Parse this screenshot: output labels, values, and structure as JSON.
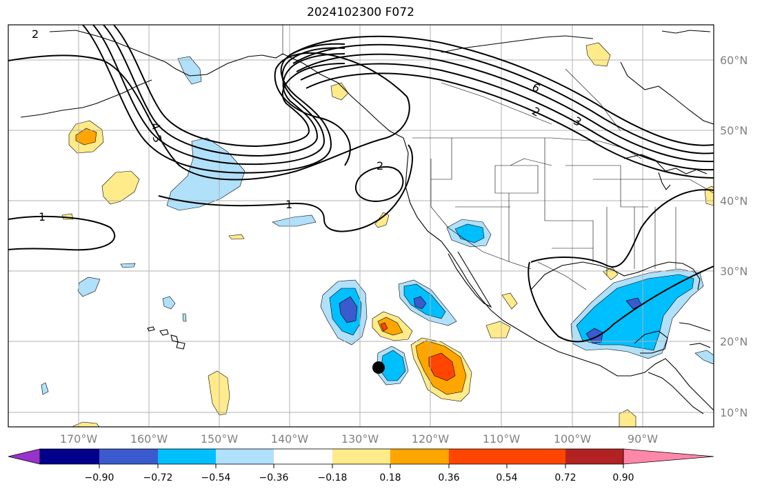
{
  "title": "2024102300 F072",
  "latitude_labels": [
    "60°N",
    "50°N",
    "40°N",
    "30°N",
    "20°N",
    "10°N"
  ],
  "longitude_labels": [
    "170°W",
    "160°W",
    "150°W",
    "140°W",
    "130°W",
    "120°W",
    "110°W",
    "100°W",
    "90°W"
  ],
  "contour_labels": [
    "2",
    "2",
    "1",
    "1",
    "4",
    "3",
    "6",
    "2",
    "3"
  ],
  "colorbar": {
    "tick_labels": [
      "−0.90",
      "−0.72",
      "−0.54",
      "−0.36",
      "−0.18",
      "0.18",
      "0.36",
      "0.54",
      "0.72",
      "0.90"
    ],
    "colors": [
      "#9932cc",
      "#00008b",
      "#3a5acd",
      "#00bfff",
      "#b0e0fa",
      "#ffffff",
      "#ffeb8a",
      "#ffa500",
      "#ff4500",
      "#b22222",
      "#ff88aa"
    ]
  },
  "colors": {
    "light_blue": "#b0e0fa",
    "blue": "#00bfff",
    "dark_blue": "#3a5acd",
    "light_yellow": "#ffeb8a",
    "orange": "#ffa500",
    "red_orange": "#ff4500",
    "grid": "#b0b0b0",
    "contour": "#000000"
  },
  "marker": "storm-position-dot"
}
